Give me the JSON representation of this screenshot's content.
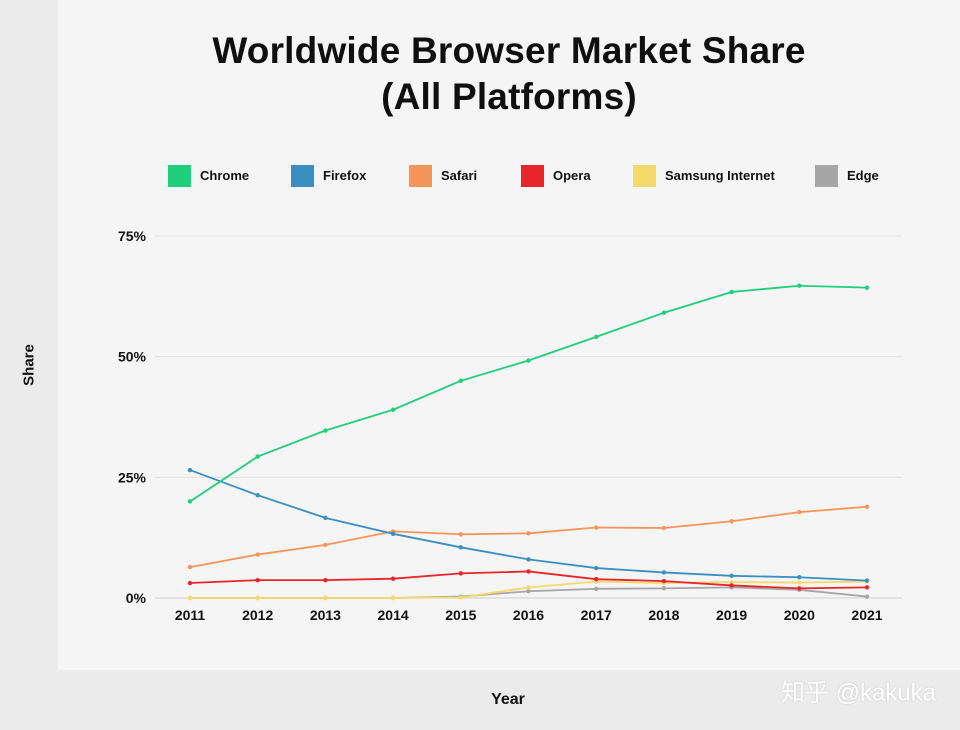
{
  "page": {
    "title_lines": [
      "Worldwide Browser Market Share",
      "(All Platforms)"
    ],
    "watermark": "知乎 @kakuka"
  },
  "chart_data": {
    "type": "line",
    "title": "Worldwide Browser Market Share (All Platforms)",
    "xlabel": "Year",
    "ylabel": "Share",
    "x": [
      2011,
      2012,
      2013,
      2014,
      2015,
      2016,
      2017,
      2018,
      2019,
      2020,
      2021
    ],
    "ylim": [
      0,
      75
    ],
    "yticks": [
      0,
      25,
      50,
      75
    ],
    "ytick_labels": [
      "0%",
      "25%",
      "50%",
      "75%"
    ],
    "grid": true,
    "legend_position": "top",
    "series": [
      {
        "name": "Chrome",
        "color": "#1fcf7e",
        "values": [
          20.0,
          29.3,
          34.7,
          39.0,
          45.0,
          49.2,
          54.1,
          59.1,
          63.4,
          64.7,
          64.3
        ]
      },
      {
        "name": "Firefox",
        "color": "#3b8fc0",
        "values": [
          26.5,
          21.3,
          16.6,
          13.3,
          10.5,
          8.0,
          6.2,
          5.3,
          4.6,
          4.3,
          3.6
        ]
      },
      {
        "name": "Safari",
        "color": "#f5955a",
        "values": [
          6.4,
          9.0,
          11.0,
          13.8,
          13.2,
          13.4,
          14.6,
          14.5,
          15.9,
          17.8,
          18.9
        ]
      },
      {
        "name": "Opera",
        "color": "#e8252a",
        "values": [
          3.1,
          3.7,
          3.7,
          4.0,
          5.1,
          5.5,
          3.9,
          3.5,
          2.6,
          2.0,
          2.2
        ]
      },
      {
        "name": "Samsung Internet",
        "color": "#f7d96b",
        "values": [
          0,
          0,
          0,
          0,
          0.1,
          2.2,
          3.4,
          3.1,
          3.3,
          3.2,
          3.4
        ]
      },
      {
        "name": "Edge",
        "color": "#a6a6a6",
        "values": [
          0,
          0,
          0,
          0,
          0.3,
          1.4,
          1.9,
          2.0,
          2.2,
          1.7,
          0.3
        ]
      }
    ]
  }
}
